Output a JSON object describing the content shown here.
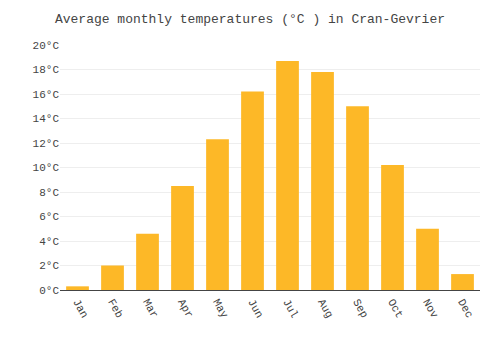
{
  "chart_data": {
    "type": "bar",
    "title": "Average monthly temperatures (°C ) in Cran-Gevrier",
    "categories": [
      "Jan",
      "Feb",
      "Mar",
      "Apr",
      "May",
      "Jun",
      "Jul",
      "Aug",
      "Sep",
      "Oct",
      "Nov",
      "Dec"
    ],
    "values": [
      0.3,
      2.0,
      4.6,
      8.5,
      12.3,
      16.2,
      18.7,
      17.8,
      15.0,
      10.2,
      5.0,
      1.3
    ],
    "color": "#FDB827",
    "ylim": [
      0,
      20
    ],
    "yticks": [
      {
        "value": 0,
        "label": "0°C"
      },
      {
        "value": 2,
        "label": "2°C"
      },
      {
        "value": 4,
        "label": "4°C"
      },
      {
        "value": 6,
        "label": "6°C"
      },
      {
        "value": 8,
        "label": "8°C"
      },
      {
        "value": 10,
        "label": "10°C"
      },
      {
        "value": 12,
        "label": "12°C"
      },
      {
        "value": 14,
        "label": "14°C"
      },
      {
        "value": 16,
        "label": "16°C"
      },
      {
        "value": 18,
        "label": "18°C"
      },
      {
        "value": 20,
        "label": "20°C"
      }
    ],
    "grid": true
  }
}
